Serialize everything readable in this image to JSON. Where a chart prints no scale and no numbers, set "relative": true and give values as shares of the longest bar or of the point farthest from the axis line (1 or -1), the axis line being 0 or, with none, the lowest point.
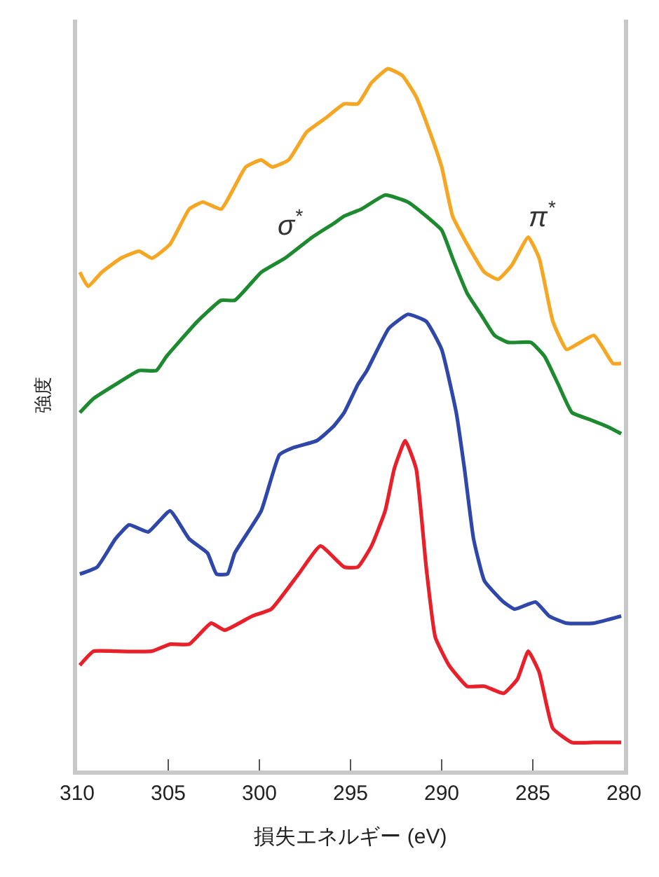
{
  "chart_data": {
    "type": "line",
    "relative": true,
    "xlabel": "損失エネルギー (eV)",
    "ylabel": "強度",
    "xlim": [
      310,
      280
    ],
    "xticks": [
      310,
      305,
      300,
      295,
      290,
      285,
      280
    ],
    "marker": "none",
    "line_style": "solid",
    "tick_labels": "x",
    "series": [
      {
        "color": "#f5a623",
        "x": [
          309.85,
          309.4,
          308.65,
          307.6,
          306.6,
          305.9,
          304.9,
          303.85,
          303.1,
          302.1,
          300.75,
          299.9,
          299.3,
          298.4,
          297.4,
          296.35,
          295.35,
          294.6,
          293.85,
          292.95,
          292.15,
          291.4,
          290.65,
          290.0,
          289.4,
          288.6,
          287.65,
          286.9,
          286.15,
          285.25,
          284.65,
          283.9,
          283.15,
          282.4,
          281.65,
          281.1,
          280.6,
          280.15
        ],
        "values": [
          0.71,
          0.69,
          0.71,
          0.73,
          0.74,
          0.73,
          0.75,
          0.8,
          0.81,
          0.8,
          0.86,
          0.87,
          0.86,
          0.87,
          0.91,
          0.93,
          0.95,
          0.95,
          0.98,
          1.0,
          0.99,
          0.96,
          0.91,
          0.86,
          0.79,
          0.75,
          0.71,
          0.7,
          0.72,
          0.76,
          0.73,
          0.64,
          0.6,
          0.61,
          0.62,
          0.6,
          0.58,
          0.58
        ]
      },
      {
        "color": "#1e8a30",
        "x": [
          309.85,
          309.1,
          307.9,
          306.6,
          305.65,
          305.1,
          303.4,
          302.1,
          301.35,
          299.9,
          298.6,
          297.1,
          295.9,
          295.35,
          294.4,
          293.1,
          291.85,
          290.85,
          290.0,
          289.4,
          288.6,
          287.85,
          287.1,
          286.35,
          285.1,
          284.35,
          283.6,
          282.85,
          281.85,
          280.9,
          280.15
        ],
        "values": [
          0.51,
          0.53,
          0.55,
          0.57,
          0.57,
          0.59,
          0.64,
          0.67,
          0.67,
          0.71,
          0.73,
          0.76,
          0.78,
          0.79,
          0.8,
          0.82,
          0.81,
          0.79,
          0.77,
          0.73,
          0.68,
          0.65,
          0.62,
          0.61,
          0.61,
          0.59,
          0.55,
          0.51,
          0.5,
          0.49,
          0.48
        ]
      },
      {
        "color": "#2e47a8",
        "x": [
          309.85,
          308.9,
          307.9,
          307.15,
          306.1,
          304.9,
          303.85,
          302.85,
          302.35,
          301.75,
          301.35,
          299.9,
          298.9,
          298.15,
          296.85,
          295.95,
          295.35,
          294.6,
          294.1,
          292.9,
          291.85,
          290.85,
          290.0,
          289.2,
          288.75,
          288.25,
          287.65,
          286.6,
          286.0,
          284.85,
          284.1,
          283.15,
          281.65,
          280.15
        ],
        "values": [
          0.28,
          0.29,
          0.33,
          0.35,
          0.34,
          0.37,
          0.33,
          0.31,
          0.28,
          0.28,
          0.31,
          0.37,
          0.45,
          0.46,
          0.47,
          0.49,
          0.51,
          0.55,
          0.57,
          0.63,
          0.65,
          0.64,
          0.6,
          0.51,
          0.43,
          0.33,
          0.27,
          0.24,
          0.23,
          0.24,
          0.22,
          0.21,
          0.21,
          0.22
        ]
      },
      {
        "color": "#e8202a",
        "x": [
          309.85,
          309.1,
          307.9,
          305.9,
          304.9,
          303.85,
          302.65,
          301.9,
          300.4,
          299.35,
          297.85,
          296.65,
          295.35,
          294.6,
          293.85,
          293.1,
          292.6,
          292.0,
          291.4,
          290.85,
          290.35,
          289.6,
          288.6,
          287.65,
          286.6,
          285.85,
          285.25,
          284.65,
          283.9,
          282.85,
          281.65,
          280.15
        ],
        "values": [
          0.15,
          0.17,
          0.17,
          0.17,
          0.18,
          0.18,
          0.21,
          0.2,
          0.22,
          0.23,
          0.28,
          0.32,
          0.29,
          0.29,
          0.32,
          0.37,
          0.43,
          0.47,
          0.43,
          0.29,
          0.19,
          0.15,
          0.12,
          0.12,
          0.11,
          0.13,
          0.17,
          0.14,
          0.06,
          0.04,
          0.04,
          0.04
        ]
      }
    ],
    "annotations": [
      "σ$^{*}$",
      "π$^{*}$"
    ]
  }
}
